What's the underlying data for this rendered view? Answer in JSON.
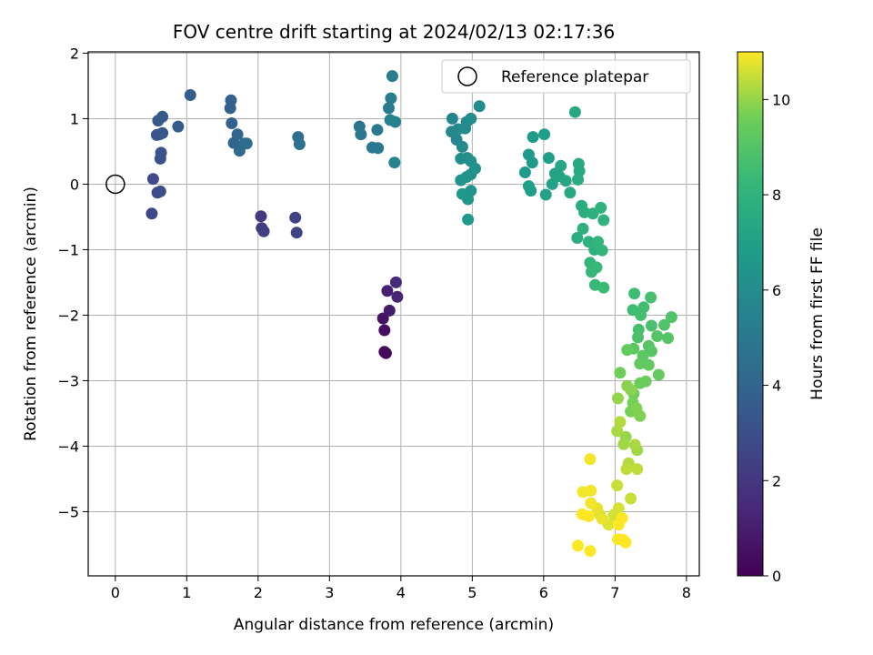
{
  "chart_data": {
    "type": "scatter",
    "title": "FOV centre drift starting at 2024/02/13 02:17:36",
    "xlabel": "Angular distance from reference (arcmin)",
    "ylabel": "Rotation from reference (arcmin)",
    "xlim": [
      -0.38,
      8.18
    ],
    "ylim": [
      -5.98,
      2.02
    ],
    "xticks": [
      0,
      1,
      2,
      3,
      4,
      5,
      6,
      7,
      8
    ],
    "yticks": [
      2,
      1,
      0,
      -1,
      -2,
      -3,
      -4,
      -5
    ],
    "grid": true,
    "legend": {
      "position": "top-right",
      "entries": [
        "Reference platepar"
      ]
    },
    "reference_point": {
      "x": 0,
      "y": 0
    },
    "colorbar": {
      "label": "Hours from first FF file",
      "range": [
        0,
        11
      ],
      "ticks": [
        0,
        2,
        4,
        6,
        8,
        10
      ],
      "colormap": "viridis"
    },
    "points": [
      [
        3.79,
        -2.58,
        0.2
      ],
      [
        3.77,
        -2.56,
        0.3
      ],
      [
        3.77,
        -2.23,
        0.5
      ],
      [
        3.75,
        -2.05,
        0.6
      ],
      [
        3.84,
        -1.93,
        0.9
      ],
      [
        3.81,
        -1.63,
        1.1
      ],
      [
        3.95,
        -1.72,
        1.3
      ],
      [
        3.93,
        -1.5,
        1.5
      ],
      [
        2.04,
        -0.49,
        2.1
      ],
      [
        2.05,
        -0.67,
        2.2
      ],
      [
        2.08,
        -0.72,
        2.3
      ],
      [
        2.52,
        -0.51,
        2.4
      ],
      [
        2.54,
        -0.74,
        2.5
      ],
      [
        0.51,
        -0.45,
        2.7
      ],
      [
        0.53,
        0.08,
        2.8
      ],
      [
        0.59,
        -0.13,
        2.9
      ],
      [
        0.63,
        -0.11,
        3.0
      ],
      [
        0.63,
        0.39,
        3.1
      ],
      [
        0.64,
        0.48,
        3.2
      ],
      [
        0.58,
        0.75,
        3.3
      ],
      [
        0.62,
        0.76,
        3.3
      ],
      [
        0.66,
        0.78,
        3.4
      ],
      [
        0.6,
        0.97,
        3.5
      ],
      [
        0.66,
        1.03,
        3.5
      ],
      [
        0.88,
        0.88,
        3.6
      ],
      [
        1.05,
        1.36,
        3.7
      ],
      [
        1.61,
        1.16,
        3.8
      ],
      [
        1.62,
        1.28,
        3.9
      ],
      [
        1.63,
        0.93,
        3.9
      ],
      [
        1.66,
        0.63,
        4.0
      ],
      [
        1.71,
        0.76,
        4.1
      ],
      [
        1.74,
        0.51,
        4.2
      ],
      [
        1.81,
        0.62,
        4.3
      ],
      [
        1.84,
        0.62,
        4.4
      ],
      [
        2.56,
        0.72,
        4.5
      ],
      [
        2.58,
        0.61,
        4.6
      ],
      [
        3.42,
        0.88,
        4.8
      ],
      [
        3.44,
        0.76,
        4.9
      ],
      [
        3.6,
        0.56,
        5.0
      ],
      [
        3.68,
        0.55,
        5.0
      ],
      [
        3.67,
        0.83,
        5.1
      ],
      [
        3.83,
        1.16,
        5.2
      ],
      [
        3.88,
        1.65,
        5.3
      ],
      [
        3.86,
        1.31,
        5.3
      ],
      [
        3.85,
        0.98,
        5.4
      ],
      [
        3.92,
        0.95,
        5.4
      ],
      [
        3.91,
        0.33,
        5.5
      ],
      [
        4.72,
        1.0,
        5.6
      ],
      [
        4.71,
        0.8,
        5.7
      ],
      [
        4.78,
        0.68,
        5.7
      ],
      [
        4.86,
        0.57,
        5.8
      ],
      [
        4.8,
        0.84,
        5.8
      ],
      [
        4.9,
        0.85,
        5.9
      ],
      [
        4.92,
        0.95,
        5.9
      ],
      [
        4.98,
        1.0,
        6.0
      ],
      [
        5.1,
        1.19,
        6.0
      ],
      [
        4.84,
        0.39,
        6.1
      ],
      [
        4.93,
        0.4,
        6.1
      ],
      [
        4.98,
        0.35,
        6.2
      ],
      [
        5.04,
        0.24,
        6.2
      ],
      [
        4.98,
        0.15,
        6.3
      ],
      [
        4.84,
        0.06,
        6.3
      ],
      [
        4.92,
        0.11,
        6.4
      ],
      [
        4.98,
        -0.1,
        6.4
      ],
      [
        4.86,
        -0.15,
        6.5
      ],
      [
        4.94,
        -0.23,
        6.5
      ],
      [
        4.94,
        -0.54,
        6.6
      ],
      [
        5.74,
        0.18,
        6.7
      ],
      [
        5.79,
        0.45,
        6.7
      ],
      [
        5.84,
        0.33,
        6.8
      ],
      [
        5.85,
        0.72,
        6.8
      ],
      [
        6.01,
        0.76,
        6.9
      ],
      [
        6.07,
        0.4,
        6.9
      ],
      [
        5.79,
        -0.03,
        7.0
      ],
      [
        5.82,
        -0.1,
        7.0
      ],
      [
        6.03,
        -0.16,
        7.1
      ],
      [
        6.12,
        0.0,
        7.1
      ],
      [
        6.16,
        0.16,
        7.2
      ],
      [
        6.22,
        0.12,
        7.2
      ],
      [
        6.24,
        0.28,
        7.3
      ],
      [
        6.31,
        0.05,
        7.3
      ],
      [
        6.37,
        -0.13,
        7.4
      ],
      [
        6.44,
        1.1,
        7.4
      ],
      [
        6.49,
        0.31,
        7.5
      ],
      [
        6.5,
        0.2,
        7.5
      ],
      [
        6.48,
        0.07,
        7.6
      ],
      [
        6.53,
        -0.33,
        7.6
      ],
      [
        6.57,
        -0.43,
        7.7
      ],
      [
        6.47,
        -0.82,
        7.7
      ],
      [
        6.55,
        -0.68,
        7.8
      ],
      [
        6.69,
        -0.45,
        7.8
      ],
      [
        6.63,
        -0.88,
        7.9
      ],
      [
        6.71,
        -1.0,
        7.9
      ],
      [
        6.8,
        -0.36,
        8.0
      ],
      [
        6.84,
        -0.55,
        8.0
      ],
      [
        6.76,
        -0.88,
        8.1
      ],
      [
        6.82,
        -1.01,
        8.1
      ],
      [
        6.65,
        -1.2,
        8.2
      ],
      [
        6.67,
        -1.34,
        8.2
      ],
      [
        6.74,
        -1.27,
        8.3
      ],
      [
        6.72,
        -1.54,
        8.3
      ],
      [
        6.84,
        -1.58,
        8.4
      ],
      [
        7.27,
        -1.67,
        8.5
      ],
      [
        7.25,
        -1.92,
        8.5
      ],
      [
        7.4,
        -1.88,
        8.6
      ],
      [
        7.36,
        -2.0,
        8.6
      ],
      [
        7.5,
        -1.73,
        8.7
      ],
      [
        7.33,
        -2.22,
        8.7
      ],
      [
        7.32,
        -2.34,
        8.8
      ],
      [
        7.51,
        -2.16,
        8.8
      ],
      [
        7.69,
        -2.15,
        8.9
      ],
      [
        7.79,
        -2.03,
        8.9
      ],
      [
        7.74,
        -2.35,
        9.0
      ],
      [
        7.59,
        -2.32,
        9.0
      ],
      [
        7.47,
        -2.47,
        9.1
      ],
      [
        7.51,
        -2.55,
        9.1
      ],
      [
        7.39,
        -2.62,
        9.2
      ],
      [
        7.26,
        -2.51,
        9.2
      ],
      [
        7.35,
        -2.74,
        9.3
      ],
      [
        7.47,
        -2.76,
        9.3
      ],
      [
        7.17,
        -2.53,
        9.4
      ],
      [
        7.61,
        -2.91,
        9.4
      ],
      [
        7.43,
        -3.01,
        9.5
      ],
      [
        7.35,
        -3.04,
        9.5
      ],
      [
        7.07,
        -2.88,
        9.6
      ],
      [
        7.26,
        -3.2,
        9.6
      ],
      [
        7.25,
        -3.34,
        9.7
      ],
      [
        7.22,
        -3.47,
        9.7
      ],
      [
        7.35,
        -3.54,
        9.8
      ],
      [
        7.3,
        -3.42,
        9.8
      ],
      [
        7.17,
        -3.08,
        9.9
      ],
      [
        7.22,
        -3.14,
        9.9
      ],
      [
        7.04,
        -3.27,
        10.0
      ],
      [
        7.15,
        -3.86,
        10.0
      ],
      [
        7.12,
        -3.97,
        10.1
      ],
      [
        7.31,
        -4.06,
        10.1
      ],
      [
        7.28,
        -3.98,
        10.2
      ],
      [
        7.03,
        -3.77,
        10.2
      ],
      [
        7.07,
        -3.63,
        10.3
      ],
      [
        7.19,
        -4.26,
        10.3
      ],
      [
        7.16,
        -4.35,
        10.4
      ],
      [
        7.31,
        -4.35,
        10.4
      ],
      [
        7.03,
        -4.6,
        10.5
      ],
      [
        7.22,
        -4.8,
        10.5
      ],
      [
        7.05,
        -4.95,
        10.6
      ],
      [
        6.98,
        -5.05,
        10.6
      ],
      [
        6.91,
        -5.2,
        10.7
      ],
      [
        6.79,
        -5.05,
        10.7
      ],
      [
        6.82,
        -5.11,
        10.8
      ],
      [
        6.75,
        -4.95,
        10.8
      ],
      [
        6.65,
        -4.2,
        10.9
      ],
      [
        6.66,
        -4.68,
        10.9
      ],
      [
        6.66,
        -4.87,
        10.9
      ],
      [
        6.55,
        -4.7,
        10.9
      ],
      [
        6.54,
        -5.04,
        11.0
      ],
      [
        6.63,
        -5.07,
        11.0
      ],
      [
        6.65,
        -5.6,
        11.0
      ],
      [
        6.48,
        -5.52,
        11.0
      ],
      [
        7.04,
        -5.42,
        11.0
      ],
      [
        7.11,
        -5.43,
        11.0
      ],
      [
        7.15,
        -5.47,
        11.0
      ],
      [
        7.05,
        -5.2,
        11.0
      ],
      [
        7.1,
        -5.1,
        11.0
      ]
    ]
  }
}
